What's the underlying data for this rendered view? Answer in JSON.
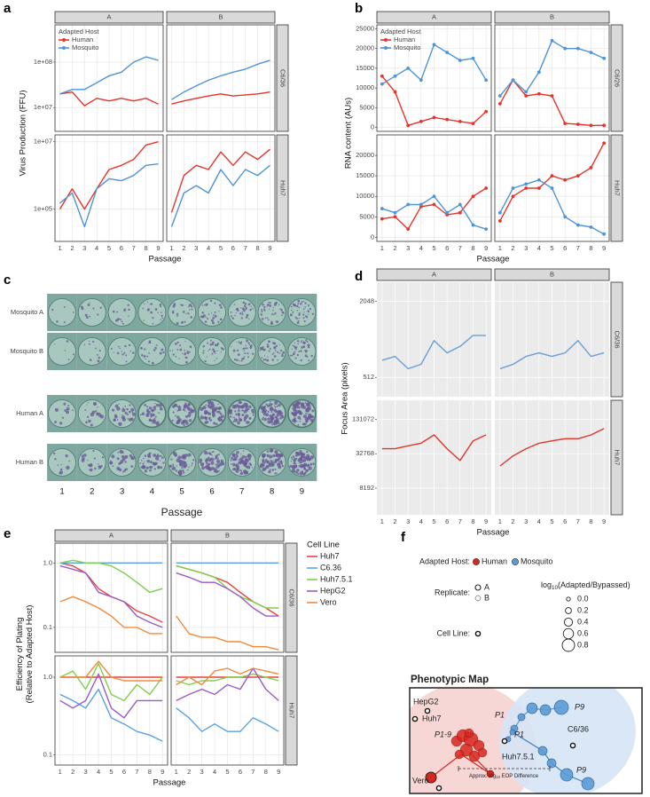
{
  "chart_data": [
    {
      "type": "line",
      "label": "a",
      "ylabel": "Virus Production (FFU)",
      "xlabel": "Passage",
      "log": true,
      "grid": true,
      "panel_bg": "#ffffff",
      "grid_color": "#e6e6e6",
      "border": true,
      "legend": "top-left",
      "legend_title": "Adapted Host",
      "cols": [
        "A",
        "B"
      ],
      "x": [
        1,
        2,
        3,
        4,
        5,
        6,
        7,
        8,
        9
      ],
      "xlim": [
        0.6,
        9.4
      ],
      "xticks": [
        1,
        2,
        3,
        4,
        5,
        6,
        7,
        8,
        9
      ],
      "series": [
        {
          "name": "Human",
          "color": "#e8332a"
        },
        {
          "name": "Mosquito",
          "color": "#4f94d8"
        }
      ],
      "rows": [
        {
          "name": "C6/36",
          "ylim": [
            3000000,
            660000000
          ],
          "yticks": [
            {
              "value": 10000000,
              "label": "1e+07"
            },
            {
              "value": 100000000,
              "label": "1e+08"
            }
          ]
        },
        {
          "name": "Huh7",
          "ylim": [
            11000,
            16000000
          ],
          "yticks": [
            {
              "value": 100000,
              "label": "1e+05"
            },
            {
              "value": 10000000,
              "label": "1e+07"
            }
          ]
        }
      ],
      "facets": [
        {
          "series": [
            {
              "values": [
                20000000,
                22000000,
                11000000,
                16000000,
                14000000,
                16000000,
                14000000,
                16000000,
                12000000
              ]
            },
            {
              "values": [
                20000000,
                25000000,
                25000000,
                35000000,
                50000000,
                60000000,
                100000000,
                130000000,
                110000000
              ]
            }
          ]
        },
        {
          "series": [
            {
              "values": [
                12000000,
                14000000,
                16000000,
                18000000,
                20000000,
                18000000,
                19000000,
                20000000,
                22000000
              ]
            },
            {
              "values": [
                15000000,
                22000000,
                30000000,
                40000000,
                50000000,
                60000000,
                70000000,
                90000000,
                110000000
              ]
            }
          ]
        },
        {
          "series": [
            {
              "values": [
                100000,
                400000,
                100000,
                400000,
                1500000,
                2000000,
                3000000,
                8000000,
                10000000
              ]
            },
            {
              "values": [
                150000,
                300000,
                30000,
                400000,
                800000,
                700000,
                1000000,
                2000000,
                2200000
              ]
            }
          ]
        },
        {
          "series": [
            {
              "values": [
                80000,
                1000000,
                2000000,
                1500000,
                5000000,
                2000000,
                5000000,
                3000000,
                6000000
              ]
            },
            {
              "values": [
                30000,
                300000,
                500000,
                300000,
                1500000,
                500000,
                1500000,
                1000000,
                2000000
              ]
            }
          ]
        }
      ]
    },
    {
      "type": "line",
      "label": "b",
      "ylabel": "RNA content (AUs)",
      "xlabel": "Passage",
      "log": false,
      "grid": true,
      "points": true,
      "panel_bg": "#ffffff",
      "grid_color": "#e6e6e6",
      "border": true,
      "legend": "top-left",
      "legend_title": "Adapted Host",
      "cols": [
        "A",
        "B"
      ],
      "x": [
        1,
        2,
        3,
        4,
        5,
        6,
        7,
        8,
        9
      ],
      "xlim": [
        0.6,
        9.4
      ],
      "xticks": [
        1,
        2,
        3,
        4,
        5,
        6,
        7,
        8,
        9
      ],
      "series": [
        {
          "name": "Human",
          "color": "#e8332a"
        },
        {
          "name": "Mosquito",
          "color": "#4f94d8"
        }
      ],
      "rows": [
        {
          "name": "C6/26",
          "ylim": [
            -1000,
            26000
          ],
          "yticks": [
            0,
            5000,
            10000,
            15000,
            20000,
            25000
          ]
        },
        {
          "name": "Huh7",
          "ylim": [
            -1000,
            25000
          ],
          "yticks": [
            0,
            5000,
            10000,
            15000,
            20000
          ]
        }
      ],
      "facets": [
        {
          "series": [
            {
              "values": [
                13000,
                9000,
                500,
                1500,
                2500,
                2000,
                1500,
                1000,
                4000
              ]
            },
            {
              "values": [
                11000,
                13000,
                15000,
                12000,
                21000,
                19000,
                17000,
                17500,
                12000
              ]
            }
          ]
        },
        {
          "series": [
            {
              "values": [
                6000,
                12000,
                8000,
                8500,
                8000,
                1000,
                800,
                500,
                500
              ]
            },
            {
              "values": [
                8000,
                12000,
                9000,
                14000,
                22000,
                20000,
                20000,
                19000,
                17500
              ]
            }
          ]
        },
        {
          "series": [
            {
              "values": [
                4500,
                5000,
                2000,
                7500,
                8000,
                5500,
                6000,
                10000,
                12000
              ]
            },
            {
              "values": [
                7000,
                6000,
                8000,
                8000,
                10000,
                6000,
                8000,
                3000,
                2000
              ]
            }
          ]
        },
        {
          "series": [
            {
              "values": [
                4000,
                10000,
                12000,
                12000,
                15000,
                14000,
                15000,
                17000,
                23000
              ]
            },
            {
              "values": [
                6000,
                12000,
                13000,
                14000,
                12000,
                5000,
                3000,
                2500,
                800
              ]
            }
          ]
        }
      ]
    },
    {
      "type": "line",
      "label": "d",
      "ylabel": "Focus Area (pixels)",
      "xlabel": "Passage",
      "log": true,
      "grid": true,
      "panel_bg": "#ebebeb",
      "grid_color": "#ffffff",
      "border": false,
      "cols": [
        "A",
        "B"
      ],
      "x": [
        1,
        2,
        3,
        4,
        5,
        6,
        7,
        8,
        9
      ],
      "xlim": [
        0.6,
        9.4
      ],
      "xticks": [
        1,
        2,
        3,
        4,
        5,
        6,
        7,
        8,
        9
      ],
      "rows": [
        {
          "name": "C6/36",
          "ylim": [
            360,
            2900
          ],
          "yticks": [
            512,
            2048
          ]
        },
        {
          "name": "Huh7",
          "ylim": [
            2800,
            282000
          ],
          "yticks": [
            8192,
            32768,
            131072
          ]
        }
      ],
      "facets": [
        {
          "series": [
            {
              "color": "#6a9fd4",
              "values": [
                700,
                750,
                600,
                650,
                1000,
                800,
                900,
                1100,
                1100
              ]
            }
          ]
        },
        {
          "series": [
            {
              "color": "#6a9fd4",
              "values": [
                600,
                650,
                750,
                800,
                750,
                800,
                1000,
                750,
                800
              ]
            }
          ]
        },
        {
          "series": [
            {
              "color": "#e0362c",
              "values": [
                40000,
                40000,
                45000,
                50000,
                70000,
                40000,
                25000,
                55000,
                70000
              ]
            }
          ]
        },
        {
          "series": [
            {
              "color": "#e0362c",
              "values": [
                20000,
                30000,
                40000,
                50000,
                55000,
                60000,
                60000,
                70000,
                90000
              ]
            }
          ]
        }
      ]
    },
    {
      "type": "line",
      "label": "e",
      "ylabel": [
        "Efficiency of Plating",
        "(Relative to Adapted Host)"
      ],
      "xlabel": "Passage",
      "log": true,
      "grid": true,
      "panel_bg": "#ffffff",
      "grid_color": "#e6e6e6",
      "border": true,
      "legend": "right",
      "legend_title": "Cell Line",
      "cols": [
        "A",
        "B"
      ],
      "x": [
        1,
        2,
        3,
        4,
        5,
        6,
        7,
        8,
        9
      ],
      "xlim": [
        0.6,
        9.4
      ],
      "xticks": [
        1,
        2,
        3,
        4,
        5,
        6,
        7,
        8,
        9
      ],
      "series": [
        {
          "name": "Huh7",
          "color": "#e8443a"
        },
        {
          "name": "C6.36",
          "color": "#5aa0e0"
        },
        {
          "name": "Huh7.5.1",
          "color": "#7bd14a"
        },
        {
          "name": "HepG2",
          "color": "#9a5ac8"
        },
        {
          "name": "Vero",
          "color": "#f08a3c"
        }
      ],
      "rows": [
        {
          "name": "C6/36",
          "ylim": [
            0.041,
            2.03
          ],
          "yticks": [
            0.1,
            {
              "value": 1,
              "label": "1.0"
            }
          ]
        },
        {
          "name": "Huh7",
          "ylim": [
            0.074,
            1.88
          ],
          "yticks": [
            0.1,
            {
              "value": 1,
              "label": "1.0"
            }
          ]
        }
      ],
      "facets": [
        {
          "series": [
            {
              "values": [
                1,
                0.9,
                0.7,
                0.4,
                0.3,
                0.25,
                0.18,
                0.15,
                0.12
              ]
            },
            {
              "values": [
                1,
                1,
                1,
                1,
                1,
                1,
                1,
                1,
                1
              ]
            },
            {
              "values": [
                1,
                1.1,
                1,
                1,
                0.9,
                0.7,
                0.5,
                0.35,
                0.4
              ]
            },
            {
              "values": [
                0.9,
                0.8,
                0.7,
                0.35,
                0.3,
                0.25,
                0.15,
                0.12,
                0.1
              ]
            },
            {
              "values": [
                0.25,
                0.3,
                0.25,
                0.2,
                0.15,
                0.1,
                0.1,
                0.08,
                0.08
              ]
            }
          ]
        },
        {
          "series": [
            {
              "values": [
                0.9,
                0.8,
                0.7,
                0.6,
                0.5,
                0.35,
                0.25,
                0.2,
                0.15
              ]
            },
            {
              "values": [
                1,
                1,
                1,
                1,
                1,
                1,
                1,
                1,
                1
              ]
            },
            {
              "values": [
                0.9,
                0.8,
                0.7,
                0.6,
                0.4,
                0.3,
                0.25,
                0.2,
                0.2
              ]
            },
            {
              "values": [
                0.7,
                0.6,
                0.5,
                0.5,
                0.4,
                0.3,
                0.2,
                0.15,
                0.15
              ]
            },
            {
              "values": [
                0.15,
                0.08,
                0.07,
                0.07,
                0.06,
                0.06,
                0.05,
                0.05,
                0.045
              ]
            }
          ]
        },
        {
          "series": [
            {
              "values": [
                1,
                1,
                1,
                1,
                1,
                1,
                1,
                1,
                1
              ]
            },
            {
              "values": [
                0.6,
                0.5,
                0.4,
                0.7,
                0.3,
                0.25,
                0.2,
                0.18,
                0.15
              ]
            },
            {
              "values": [
                1,
                1.2,
                0.7,
                1.5,
                0.6,
                0.5,
                0.8,
                0.6,
                1
              ]
            },
            {
              "values": [
                0.5,
                0.4,
                0.5,
                1.1,
                0.4,
                0.3,
                0.5,
                0.5,
                0.5
              ]
            },
            {
              "values": [
                1,
                1,
                1,
                1.6,
                1,
                0.9,
                0.9,
                0.9,
                0.9
              ]
            }
          ]
        },
        {
          "series": [
            {
              "values": [
                1,
                1,
                1,
                1,
                1,
                1,
                1,
                1,
                1
              ]
            },
            {
              "values": [
                0.4,
                0.3,
                0.2,
                0.25,
                0.2,
                0.2,
                0.3,
                0.25,
                0.2
              ]
            },
            {
              "values": [
                0.9,
                0.8,
                0.9,
                0.9,
                1,
                1,
                1.1,
                1,
                0.9
              ]
            },
            {
              "values": [
                0.5,
                0.6,
                0.7,
                0.6,
                0.8,
                0.7,
                1.3,
                0.7,
                0.5
              ]
            },
            {
              "values": [
                0.8,
                1,
                0.8,
                1.2,
                1.3,
                1.1,
                1.3,
                1.2,
                1.1
              ]
            }
          ]
        }
      ]
    }
  ],
  "plates": {
    "label": "c",
    "rows": [
      "Mosquito A",
      "Mosquito B",
      "Human A",
      "Human B"
    ],
    "cols": [
      "1",
      "2",
      "3",
      "4",
      "5",
      "6",
      "7",
      "8",
      "9"
    ],
    "xlabel": "Passage"
  },
  "phenotypic_map": {
    "label": "f",
    "host_title": "Adapted Host:",
    "hosts": [
      {
        "name": "Human",
        "color": "#d7261e"
      },
      {
        "name": "Mosquito",
        "color": "#5b9bd5"
      }
    ],
    "replicate_title": "Replicate:",
    "replicates": [
      "A",
      "B"
    ],
    "cell_line_title": "Cell Line:",
    "size_title": {
      "pre": "log",
      "sub": "10",
      "post": "(Adapted/Bypassed)"
    },
    "sizes": [
      {
        "value": 0,
        "label": "0.0"
      },
      0.2,
      0.4,
      0.6,
      0.8
    ],
    "title": "Phenotypic Map",
    "cell_lines": [
      "HepG2",
      "Huh7",
      "C6/36",
      "Huh7.5.1",
      "Vero"
    ],
    "passage_labels": [
      "P1-9",
      "P1",
      "P1",
      "P9",
      "P9"
    ],
    "scale_note": {
      "pre": "Approx. log",
      "sub": "10",
      "post": " EOP Difference"
    }
  }
}
